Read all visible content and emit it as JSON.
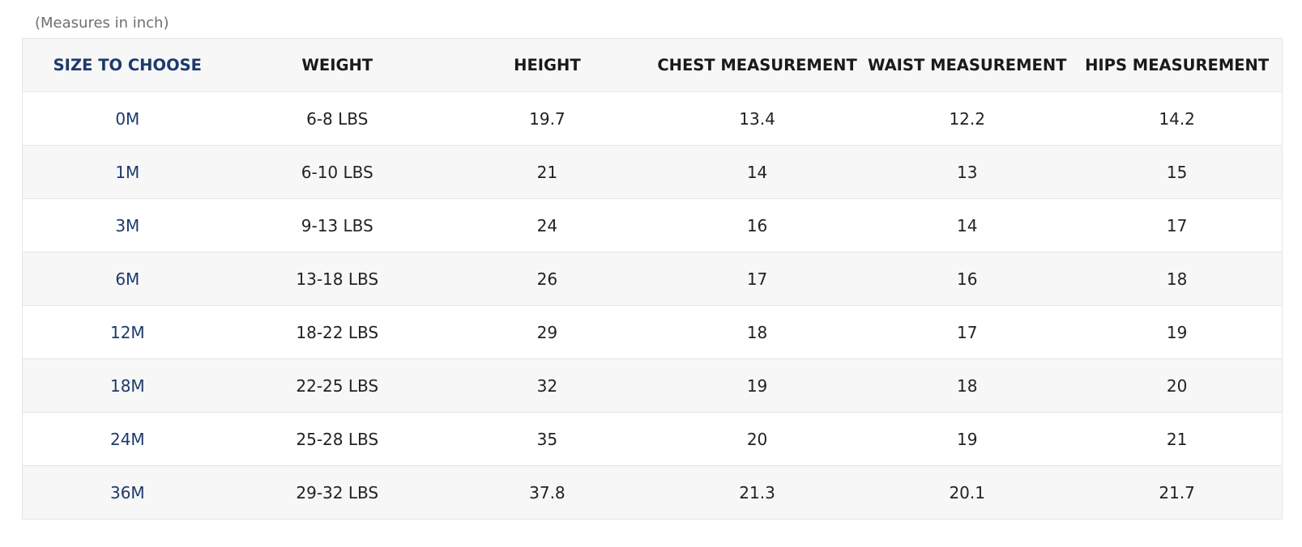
{
  "caption": "(Measures in inch)",
  "table": {
    "headers": [
      "SIZE TO CHOOSE",
      "WEIGHT",
      "HEIGHT",
      "CHEST MEASUREMENT",
      "WAIST MEASUREMENT",
      "HIPS MEASUREMENT"
    ],
    "rows": [
      [
        "0M",
        "6-8 LBS",
        "19.7",
        "13.4",
        "12.2",
        "14.2"
      ],
      [
        "1M",
        "6-10 LBS",
        "21",
        "14",
        "13",
        "15"
      ],
      [
        "3M",
        "9-13 LBS",
        "24",
        "16",
        "14",
        "17"
      ],
      [
        "6M",
        "13-18 LBS",
        "26",
        "17",
        "16",
        "18"
      ],
      [
        "12M",
        "18-22 LBS",
        "29",
        "18",
        "17",
        "19"
      ],
      [
        "18M",
        "22-25 LBS",
        "32",
        "19",
        "18",
        "20"
      ],
      [
        "24M",
        "25-28 LBS",
        "35",
        "20",
        "19",
        "21"
      ],
      [
        "36M",
        "29-32 LBS",
        "37.8",
        "21.3",
        "20.1",
        "21.7"
      ]
    ]
  },
  "colors": {
    "size_text": "#1d3a6b",
    "stripe": "#f7f7f8",
    "border": "#e3e5ec"
  }
}
